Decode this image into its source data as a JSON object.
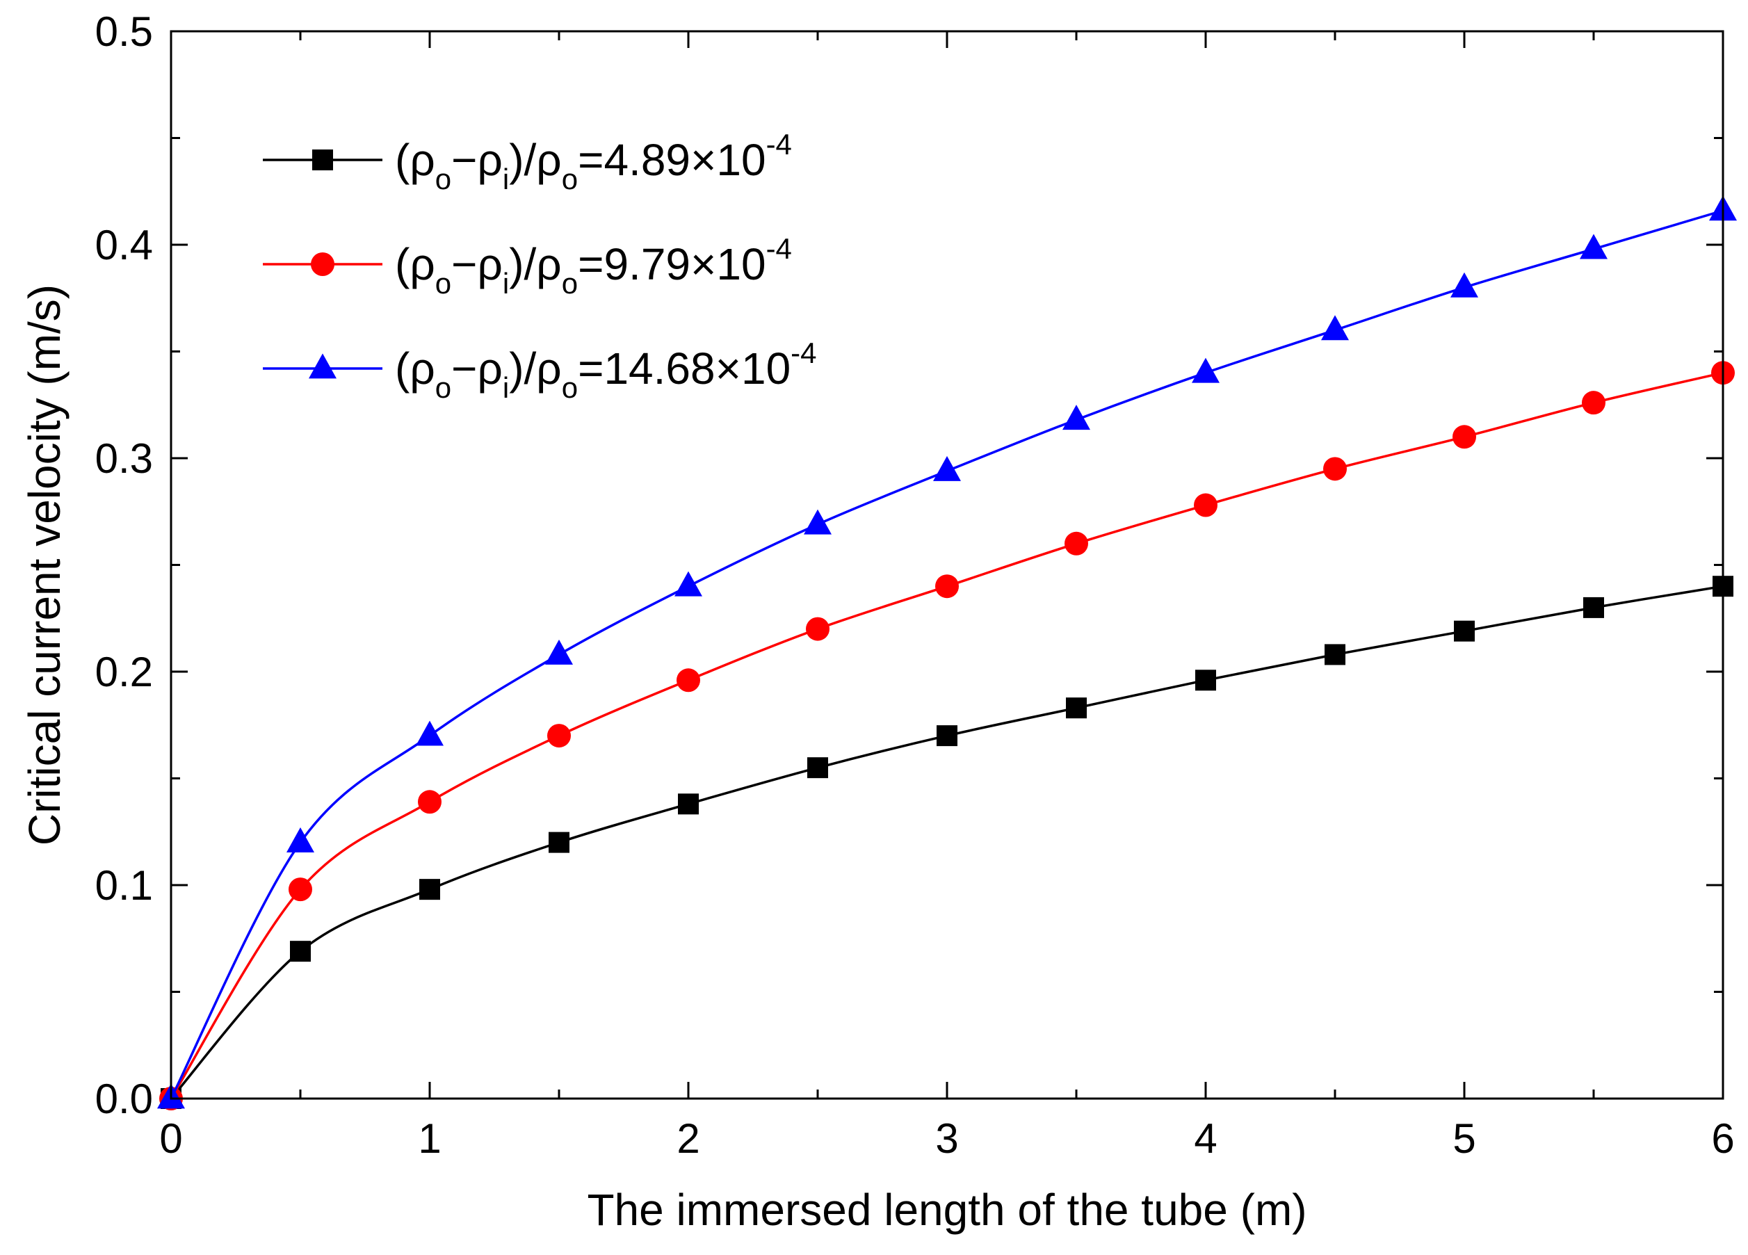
{
  "chart_data": {
    "type": "line",
    "title": "",
    "xlabel": "The immersed length of the tube (m)",
    "ylabel": "Critical current velocity (m/s)",
    "xlim": [
      0,
      6
    ],
    "ylim": [
      0,
      0.5
    ],
    "xticks": [
      0,
      1,
      2,
      3,
      4,
      5,
      6
    ],
    "xtick_labels": [
      "0",
      "1",
      "2",
      "3",
      "4",
      "5",
      "6"
    ],
    "yticks": [
      0.0,
      0.1,
      0.2,
      0.3,
      0.4,
      0.5
    ],
    "ytick_labels": [
      "0.0",
      "0.1",
      "0.2",
      "0.3",
      "0.4",
      "0.5"
    ],
    "grid": false,
    "legend_position": "top-left",
    "x": [
      0,
      0.5,
      1,
      1.5,
      2,
      2.5,
      3,
      3.5,
      4,
      4.5,
      5,
      5.5,
      6
    ],
    "series": [
      {
        "name": "(ρo−ρi)/ρo=4.89×10^-4",
        "legend_parts": {
          "open": "(ρ",
          "sub1": "o",
          "minus": "−ρ",
          "sub2": "i",
          "mid": ")/ρ",
          "sub3": "o",
          "value": "=4.89×10",
          "exp": "-4"
        },
        "color": "#000000",
        "marker": "square",
        "values": [
          0.0,
          0.069,
          0.098,
          0.12,
          0.138,
          0.155,
          0.17,
          0.183,
          0.196,
          0.208,
          0.219,
          0.23,
          0.24
        ]
      },
      {
        "name": "(ρo−ρi)/ρo=9.79×10^-4",
        "legend_parts": {
          "open": "(ρ",
          "sub1": "o",
          "minus": "−ρ",
          "sub2": "i",
          "mid": ")/ρ",
          "sub3": "o",
          "value": "=9.79×10",
          "exp": "-4"
        },
        "color": "#ff0000",
        "marker": "circle",
        "values": [
          0.0,
          0.098,
          0.139,
          0.17,
          0.196,
          0.22,
          0.24,
          0.26,
          0.278,
          0.295,
          0.31,
          0.326,
          0.34
        ]
      },
      {
        "name": "(ρo−ρi)/ρo=14.68×10^-4",
        "legend_parts": {
          "open": "(ρ",
          "sub1": "o",
          "minus": "−ρ",
          "sub2": "i",
          "mid": ")/ρ",
          "sub3": "o",
          "value": "=14.68×10",
          "exp": "-4"
        },
        "color": "#0000ff",
        "marker": "triangle",
        "values": [
          0.0,
          0.12,
          0.17,
          0.208,
          0.24,
          0.269,
          0.294,
          0.318,
          0.34,
          0.36,
          0.38,
          0.398,
          0.416
        ]
      }
    ]
  }
}
